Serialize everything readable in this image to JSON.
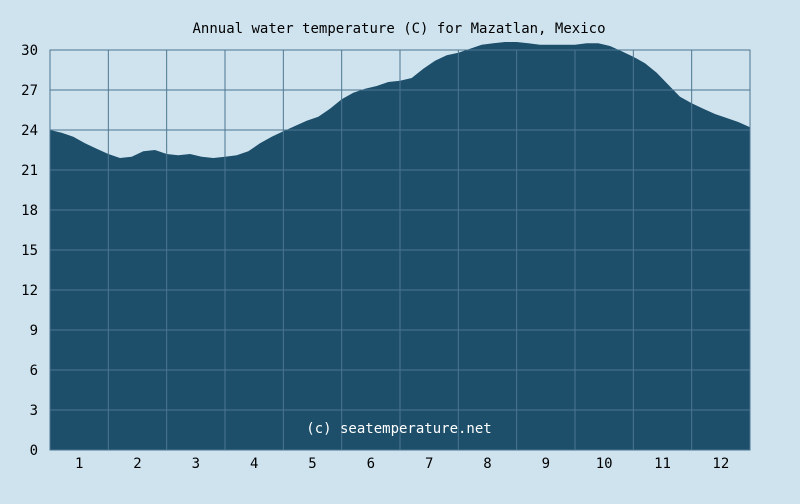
{
  "chart_data": {
    "type": "area",
    "title": "Annual water temperature (C) for Mazatlan, Mexico",
    "watermark": "(c) seatemperature.net",
    "xlabel": "",
    "ylabel": "",
    "x_tick_labels": [
      "1",
      "2",
      "3",
      "4",
      "5",
      "6",
      "7",
      "8",
      "9",
      "10",
      "11",
      "12"
    ],
    "y_tick_labels": [
      "0",
      "3",
      "6",
      "9",
      "12",
      "15",
      "18",
      "21",
      "24",
      "27",
      "30"
    ],
    "xlim": [
      0,
      12
    ],
    "ylim": [
      0,
      30
    ],
    "grid": true,
    "colors": {
      "background": "#cfe3ef",
      "area_fill": "#1d4f6b",
      "grid": "#4d7690",
      "watermark": "#ffffff"
    },
    "series": [
      {
        "x": [
          0.0,
          0.2,
          0.4,
          0.6,
          0.8,
          1.0,
          1.2,
          1.4,
          1.6,
          1.8,
          2.0,
          2.2,
          2.4,
          2.6,
          2.8,
          3.0,
          3.2,
          3.4,
          3.6,
          3.8,
          4.0,
          4.2,
          4.4,
          4.6,
          4.8,
          5.0,
          5.2,
          5.4,
          5.6,
          5.8,
          6.0,
          6.2,
          6.4,
          6.6,
          6.8,
          7.0,
          7.2,
          7.4,
          7.6,
          7.8,
          8.0,
          8.2,
          8.4,
          8.6,
          8.8,
          9.0,
          9.2,
          9.4,
          9.6,
          9.8,
          10.0,
          10.2,
          10.4,
          10.6,
          10.8,
          11.0,
          11.2,
          11.4,
          11.6,
          11.8,
          12.0
        ],
        "values": [
          24.0,
          23.8,
          23.5,
          23.0,
          22.6,
          22.2,
          21.9,
          22.0,
          22.4,
          22.5,
          22.2,
          22.1,
          22.2,
          22.0,
          21.9,
          22.0,
          22.1,
          22.4,
          23.0,
          23.5,
          23.9,
          24.3,
          24.7,
          25.0,
          25.6,
          26.3,
          26.8,
          27.1,
          27.3,
          27.6,
          27.7,
          27.9,
          28.6,
          29.2,
          29.6,
          29.8,
          30.1,
          30.4,
          30.5,
          30.6,
          30.6,
          30.5,
          30.4,
          30.4,
          30.4,
          30.4,
          30.5,
          30.5,
          30.3,
          29.9,
          29.5,
          29.0,
          28.3,
          27.4,
          26.5,
          26.0,
          25.6,
          25.2,
          24.9,
          24.6,
          24.2
        ]
      }
    ]
  }
}
